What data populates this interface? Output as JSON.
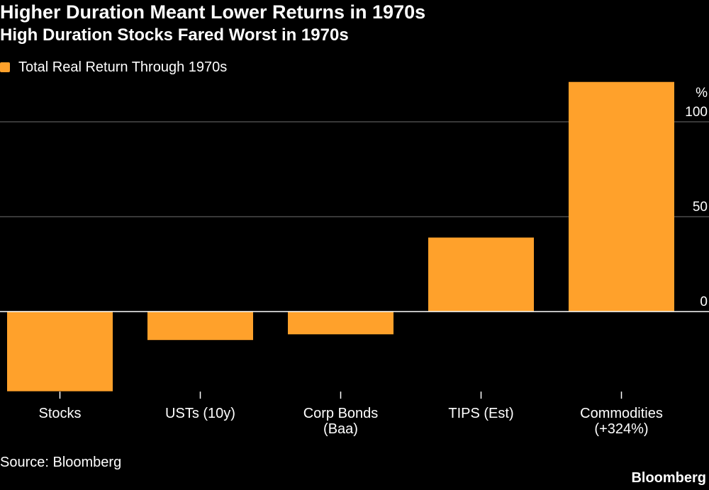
{
  "title": "Higher Duration Meant Lower Returns in 1970s",
  "subtitle": "High Duration Stocks Fared Worst in 1970s",
  "legend": {
    "label": "Total Real Return Through 1970s"
  },
  "source": "Source: Bloomberg",
  "brand": "Bloomberg",
  "colors": {
    "bar": "#FFA12B",
    "background": "#000000",
    "grid": "#5a5a5a",
    "zero_line": "#ffffff",
    "text": "#ffffff"
  },
  "chart_data": {
    "type": "bar",
    "title": "Higher Duration Meant Lower Returns in 1970s",
    "subtitle": "High Duration Stocks Fared Worst in 1970s",
    "categories": [
      "Stocks",
      "USTs (10y)",
      "Corp Bonds\n(Baa)",
      "TIPS (Est)",
      "Commodities\n(+324%)"
    ],
    "series": [
      {
        "name": "Total Real Return Through 1970s",
        "values": [
          -42,
          -15,
          -12,
          39,
          121
        ]
      }
    ],
    "y_unit": "%",
    "y_ticks": [
      0,
      50,
      100
    ],
    "ylim": [
      -45,
      121
    ],
    "grid": true,
    "legend_position": "top-left"
  }
}
